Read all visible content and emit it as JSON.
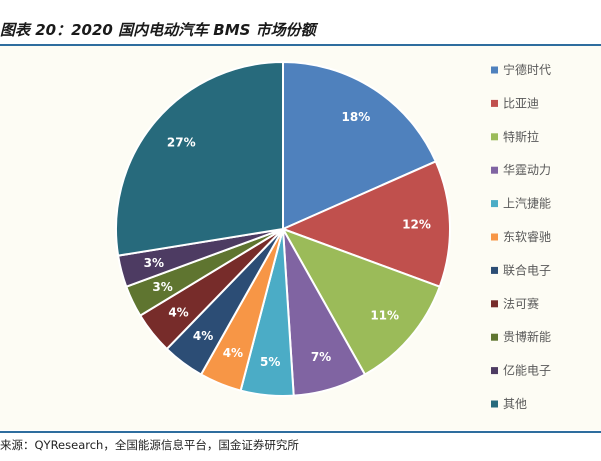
{
  "title": "图表 20：2020 国内电动汽车 BMS 市场份额",
  "source": "来源：QYResearch，全国能源信息平台，国金证券研究所",
  "chart_data": {
    "type": "pie",
    "title": "2020 国内电动汽车 BMS 市场份额",
    "legend_position": "right",
    "slices": [
      {
        "label": "宁德时代",
        "value": 18,
        "data_label": "18%",
        "color": "#4f81bd"
      },
      {
        "label": "比亚迪",
        "value": 12,
        "data_label": "12%",
        "color": "#c0504d"
      },
      {
        "label": "特斯拉",
        "value": 11,
        "data_label": "11%",
        "color": "#9bbb59"
      },
      {
        "label": "华霆动力",
        "value": 7,
        "data_label": "7%",
        "color": "#8064a2"
      },
      {
        "label": "上汽捷能",
        "value": 5,
        "data_label": "5%",
        "color": "#4bacc6"
      },
      {
        "label": "东软睿驰",
        "value": 4,
        "data_label": "4%",
        "color": "#f79646"
      },
      {
        "label": "联合电子",
        "value": 4,
        "data_label": "4%",
        "color": "#2c4d75"
      },
      {
        "label": "法可赛",
        "value": 4,
        "data_label": "4%",
        "color": "#772c2a"
      },
      {
        "label": "贵博新能",
        "value": 3,
        "data_label": "3%",
        "color": "#5f7530"
      },
      {
        "label": "亿能电子",
        "value": 3,
        "data_label": "3%",
        "color": "#4d3b62"
      },
      {
        "label": "其他",
        "value": 27,
        "data_label": "27%",
        "color": "#276a7c"
      }
    ]
  }
}
